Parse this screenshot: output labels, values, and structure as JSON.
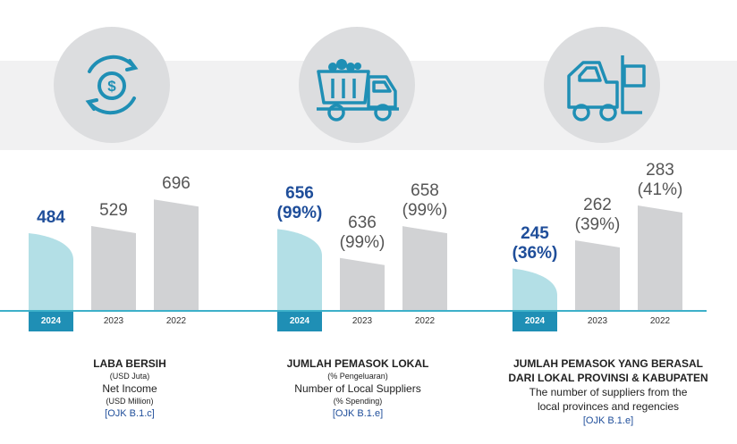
{
  "panels": [
    {
      "icon": "money-cycle-icon",
      "title": "LABA BERSIH",
      "subtitle_id": "(USD Juta)",
      "title_en": "Net Income",
      "subtitle_en": "(USD Million)",
      "ref": "[OJK B.1.c]"
    },
    {
      "icon": "truck-icon",
      "title": "JUMLAH PEMASOK LOKAL",
      "subtitle_id": "(% Pengeluaran)",
      "title_en": "Number of Local Suppliers",
      "subtitle_en": "(% Spending)",
      "ref": "[OJK B.1.e]"
    },
    {
      "icon": "forklift-icon",
      "title": "JUMLAH PEMASOK YANG BERASAL",
      "title2": "DARI LOKAL PROVINSI & KABUPATEN",
      "title_en": "The number of suppliers from the",
      "title_en2": "local provinces and regencies",
      "ref": "[OJK B.1.e]"
    }
  ],
  "colors": {
    "highlight_bar": "#b3dfe6",
    "bar": "#d1d2d4",
    "accent": "#1f4e9a"
  },
  "chart_data": [
    {
      "type": "bar",
      "title": "Net Income (USD Million)",
      "categories": [
        "2024",
        "2023",
        "2022"
      ],
      "values": [
        484,
        529,
        696
      ],
      "value_labels": [
        "484",
        "529",
        "696"
      ],
      "pct_labels": [
        "",
        "",
        ""
      ],
      "highlight": "2024"
    },
    {
      "type": "bar",
      "title": "Number of Local Suppliers (% Spending)",
      "categories": [
        "2024",
        "2023",
        "2022"
      ],
      "values": [
        656,
        636,
        658
      ],
      "value_labels": [
        "656",
        "636",
        "658"
      ],
      "pct_labels": [
        "(99%)",
        "(99%)",
        "(99%)"
      ],
      "highlight": "2024"
    },
    {
      "type": "bar",
      "title": "Number of suppliers from the local provinces and regencies",
      "categories": [
        "2024",
        "2023",
        "2022"
      ],
      "values": [
        245,
        262,
        283
      ],
      "value_labels": [
        "245",
        "262",
        "283"
      ],
      "pct_labels": [
        "(36%)",
        "(39%)",
        "(41%)"
      ],
      "highlight": "2024"
    }
  ]
}
